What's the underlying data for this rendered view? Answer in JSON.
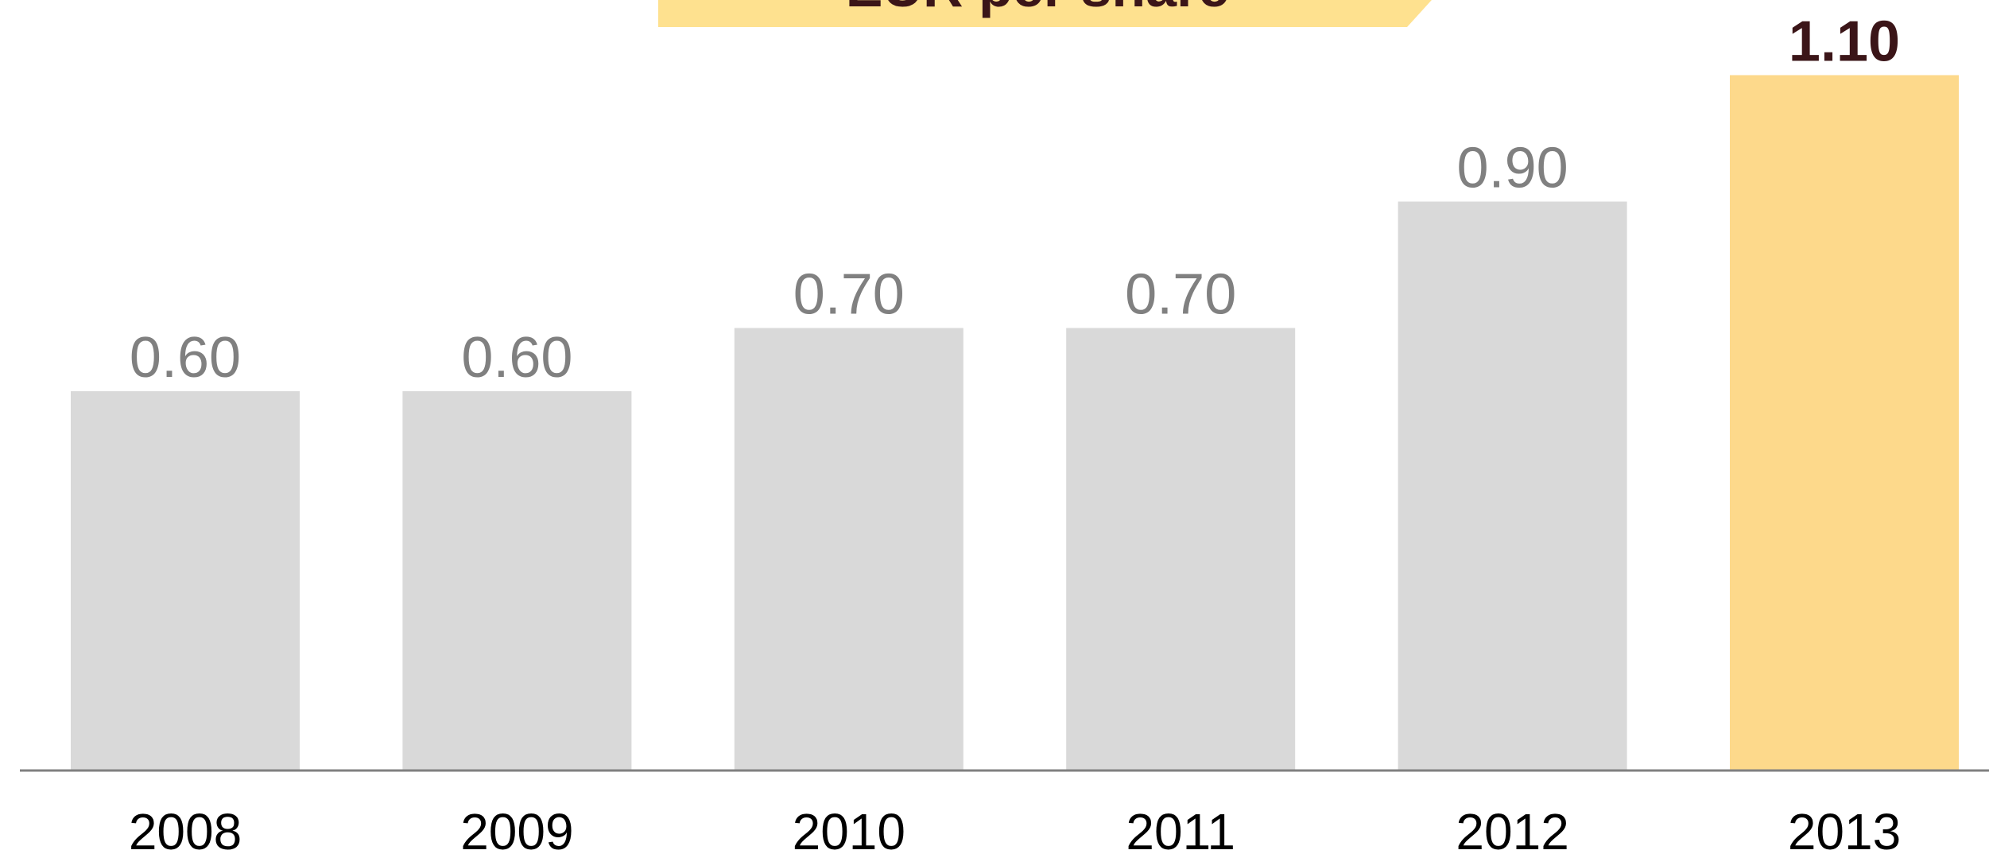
{
  "chart_data": {
    "type": "bar",
    "title": "EUR per share",
    "categories": [
      "2008",
      "2009",
      "2010",
      "2011",
      "2012",
      "2013"
    ],
    "values": [
      0.6,
      0.6,
      0.7,
      0.7,
      0.9,
      1.1
    ],
    "value_labels": [
      "0.60",
      "0.60",
      "0.70",
      "0.70",
      "0.90",
      "1.10"
    ],
    "highlight_index": 5,
    "xlabel": "",
    "ylabel": "",
    "ylim": [
      0,
      1.2
    ],
    "grid": false,
    "legend": "none"
  },
  "colors": {
    "bar_normal": "#d9d9d9",
    "bar_highlight": "#fdd98b",
    "title_banner": "#fee18f",
    "label_normal": "#808080",
    "label_highlight": "#3b1518",
    "axis_line": "#808080"
  }
}
